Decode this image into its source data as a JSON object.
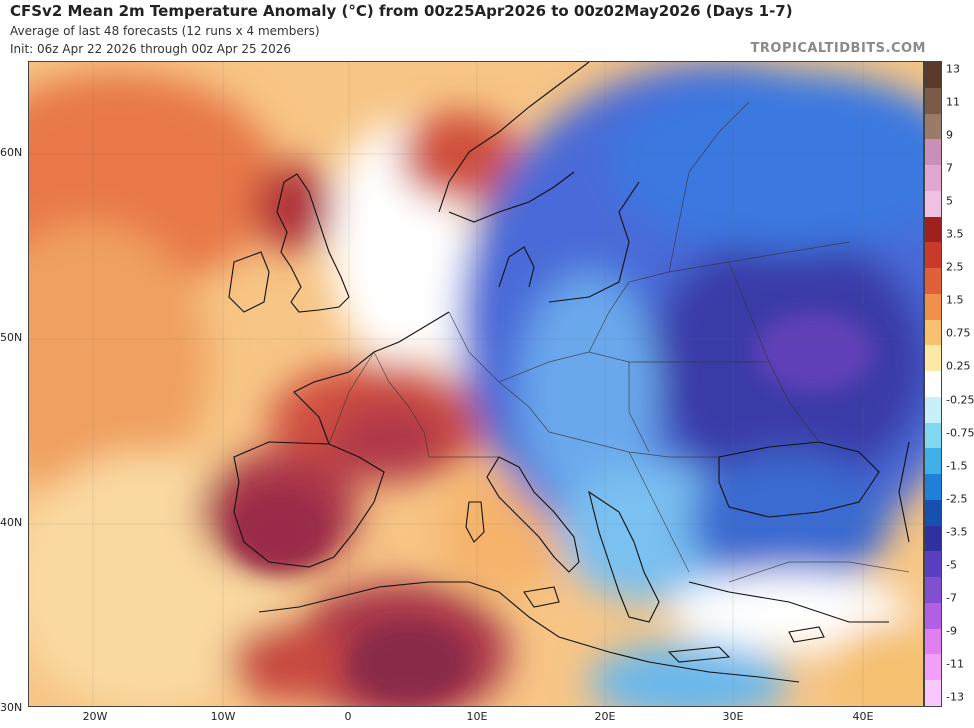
{
  "header": {
    "title": "CFSv2 Mean 2m Temperature Anomaly (°C) from 00z25Apr2026 to 00z02May2026 (Days 1-7)",
    "subtitle1": "Average of last 48 forecasts (12 runs x 4 members)",
    "subtitle2": "Init: 06z Apr 22 2026 through 00z Apr 25 2026",
    "credit": "TROPICALTIDBITS.COM"
  },
  "axes": {
    "lat_labels": [
      "60N",
      "50N",
      "40N",
      "30N"
    ],
    "lon_labels": [
      "20W",
      "10W",
      "0",
      "10E",
      "20E",
      "30E",
      "40E"
    ]
  },
  "colorbar": {
    "labels": [
      "13",
      "11",
      "9",
      "7",
      "5",
      "3.5",
      "2.5",
      "1.5",
      "0.75",
      "0.25",
      "-0.25",
      "-0.75",
      "-1.5",
      "-2.5",
      "-3.5",
      "-5",
      "-7",
      "-9",
      "-11",
      "-13"
    ],
    "colors": [
      "#5a3a2a",
      "#7a5a48",
      "#9a7a68",
      "#c890b8",
      "#e0a8d0",
      "#f0c0e0",
      "#a0201e",
      "#c83a2a",
      "#e0603a",
      "#f0904a",
      "#f8c070",
      "#fde8a8",
      "#ffffff",
      "#c8f0f8",
      "#80d8f0",
      "#40b0e8",
      "#2080d8",
      "#1850b0",
      "#3030a0",
      "#5a40c0",
      "#8050d0",
      "#b060e0",
      "#e080f0",
      "#f0a0f8",
      "#f8c8fc"
    ]
  },
  "map_colors": {
    "ocean_warm": "#f5b36a",
    "strong_warm": "#c8403a",
    "hot": "#a82a3a",
    "cold": "#4a6ad8",
    "very_cold": "#3a3aa8",
    "neutral": "#ffffff",
    "light_blue": "#8ad0f0"
  }
}
